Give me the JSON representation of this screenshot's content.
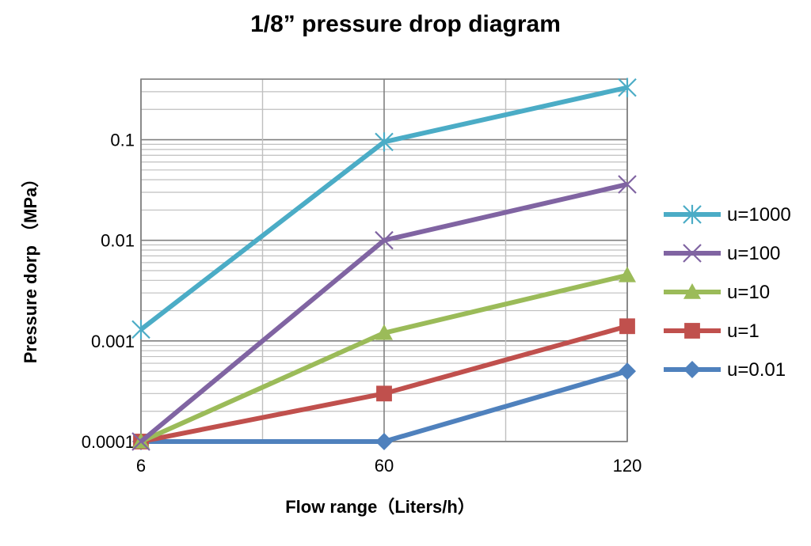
{
  "chart_data": {
    "type": "line",
    "title": "1/8” pressure drop diagram",
    "xlabel": "Flow range（Liters/h）",
    "ylabel": "Pressure dorp （MPa）",
    "x": [
      6,
      60,
      120
    ],
    "x_tick_labels": [
      "6",
      "60",
      "120"
    ],
    "y_scale": "log",
    "ylim": [
      0.0001,
      0.4
    ],
    "y_tick_values": [
      0.0001,
      0.001,
      0.01,
      0.1
    ],
    "y_tick_labels": [
      "0.0001",
      "0.001",
      "0.01",
      "0.1"
    ],
    "grid": true,
    "legend_position": "right",
    "series": [
      {
        "name": "u=1000",
        "values": [
          0.0013,
          0.095,
          0.33
        ],
        "color": "#4BACC6",
        "marker": "asterisk"
      },
      {
        "name": "u=100",
        "values": [
          0.0001,
          0.01,
          0.036
        ],
        "color": "#8064A2",
        "marker": "cross"
      },
      {
        "name": "u=10",
        "values": [
          0.0001,
          0.0012,
          0.0045
        ],
        "color": "#9BBB59",
        "marker": "triangle"
      },
      {
        "name": "u=1",
        "values": [
          0.0001,
          0.0003,
          0.0014
        ],
        "color": "#C0504D",
        "marker": "square"
      },
      {
        "name": "u=0.01",
        "values": [
          0.0001,
          0.0001,
          0.0005
        ],
        "color": "#4F81BD",
        "marker": "diamond"
      }
    ]
  }
}
